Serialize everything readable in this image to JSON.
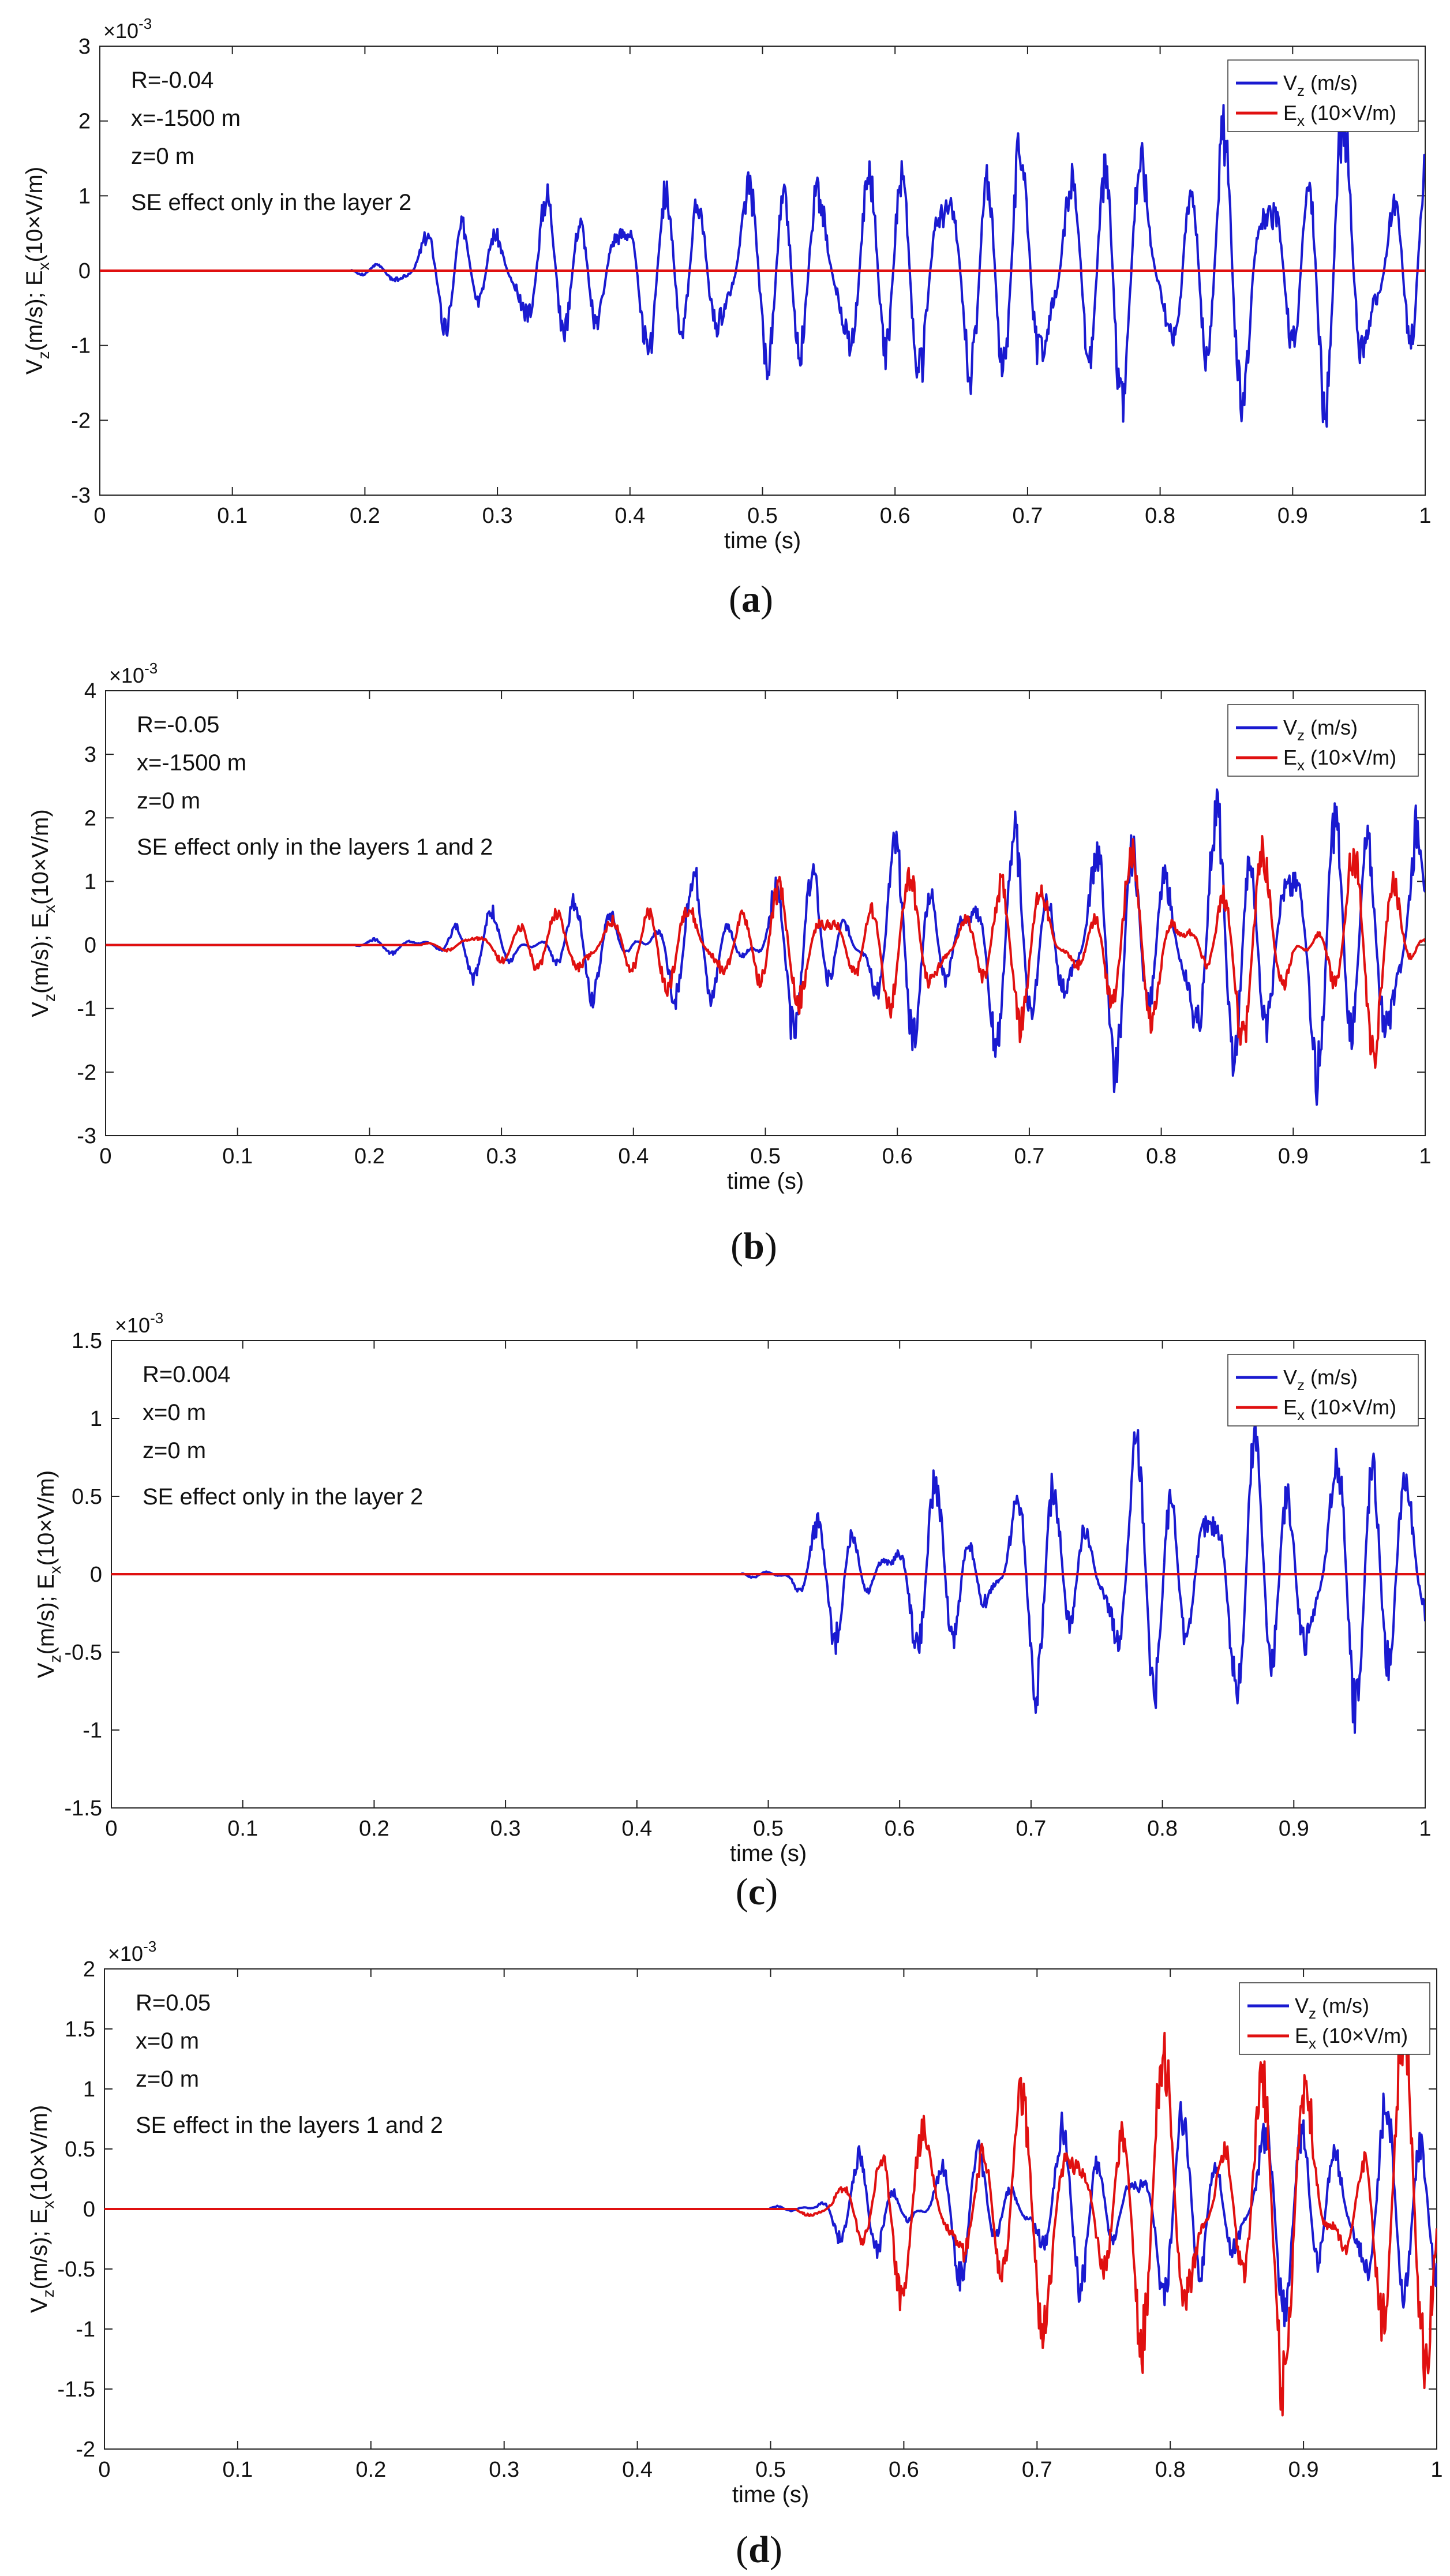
{
  "chart_data": [
    {
      "type": "line",
      "panel": "(a)",
      "caption_letter": "a",
      "scale_label": "×10",
      "scale_exp": "-3",
      "xlim": [
        0,
        1
      ],
      "ylim": [
        -3,
        3
      ],
      "xticks": [
        0,
        0.1,
        0.2,
        0.3,
        0.4,
        0.5,
        0.6,
        0.7,
        0.8,
        0.9,
        1
      ],
      "xtick_labels": [
        "0",
        "0.1",
        "0.2",
        "0.3",
        "0.4",
        "0.5",
        "0.6",
        "0.7",
        "0.8",
        "0.9",
        "1"
      ],
      "yticks": [
        3,
        2,
        1,
        0,
        -1,
        -2,
        -3
      ],
      "ytick_labels": [
        "3",
        "2",
        "1",
        "0",
        "-1",
        "-2",
        "-3"
      ],
      "xlabel": "time (s)",
      "ylabel": "V_z(m/s); E_x(10×V/m)",
      "annotations": [
        "R=-0.04",
        "x=-1500 m",
        "z=0 m",
        "SE effect only in the layer 2"
      ],
      "series": [
        {
          "name": "V_z (m/s)",
          "legend_main": "V",
          "legend_sub": "z",
          "legend_rest": " (m/s)",
          "color": "#1a1ad0",
          "onset": 0.19,
          "amps": [
            0.05,
            0.5,
            1.0,
            1.4,
            1.8,
            1.9,
            2.0
          ],
          "freq": 33,
          "seed": 3
        },
        {
          "name": "E_x (10×V/m)",
          "legend_main": "E",
          "legend_sub": "x",
          "legend_rest": " (10×V/m)",
          "color": "#e01010",
          "onset": 1.1,
          "amps": [
            0,
            0,
            0,
            0,
            0,
            0,
            0
          ],
          "freq": 33,
          "seed": 5
        }
      ]
    },
    {
      "type": "line",
      "panel": "(b)",
      "caption_letter": "b",
      "scale_label": "×10",
      "scale_exp": "-3",
      "xlim": [
        0,
        1
      ],
      "ylim": [
        -3,
        4
      ],
      "xticks": [
        0,
        0.1,
        0.2,
        0.3,
        0.4,
        0.5,
        0.6,
        0.7,
        0.8,
        0.9,
        1
      ],
      "xtick_labels": [
        "0",
        "0.1",
        "0.2",
        "0.3",
        "0.4",
        "0.5",
        "0.6",
        "0.7",
        "0.8",
        "0.9",
        "1"
      ],
      "yticks": [
        4,
        3,
        2,
        1,
        0,
        -1,
        -2,
        -3
      ],
      "ytick_labels": [
        "4",
        "3",
        "2",
        "1",
        "0",
        "-1",
        "-2",
        "-3"
      ],
      "xlabel": "time (s)",
      "ylabel": "V_z(m/s); E_x(10×V/m)",
      "annotations": [
        "R=-0.05",
        "x=-1500 m",
        "z=0 m",
        "SE effect only in the layers 1 and 2"
      ],
      "series": [
        {
          "name": "V_z (m/s)",
          "legend_main": "V",
          "legend_sub": "z",
          "legend_rest": " (m/s)",
          "color": "#1a1ad0",
          "onset": 0.19,
          "amps": [
            0.05,
            0.3,
            0.6,
            1.2,
            1.6,
            2.1,
            2.4
          ],
          "freq": 33,
          "seed": 7
        },
        {
          "name": "E_x (10×V/m)",
          "legend_main": "E",
          "legend_sub": "x",
          "legend_rest": " (10×V/m)",
          "color": "#e01010",
          "onset": 0.24,
          "amps": [
            0.02,
            0.2,
            0.5,
            0.9,
            1.1,
            1.3,
            1.5
          ],
          "freq": 30,
          "seed": 11
        }
      ]
    },
    {
      "type": "line",
      "panel": "(c)",
      "caption_letter": "c",
      "scale_label": "×10",
      "scale_exp": "-3",
      "xlim": [
        0,
        1
      ],
      "ylim": [
        -1.5,
        1.5
      ],
      "xticks": [
        0,
        0.1,
        0.2,
        0.3,
        0.4,
        0.5,
        0.6,
        0.7,
        0.8,
        0.9,
        1
      ],
      "xtick_labels": [
        "0",
        "0.1",
        "0.2",
        "0.3",
        "0.4",
        "0.5",
        "0.6",
        "0.7",
        "0.8",
        "0.9",
        "1"
      ],
      "yticks": [
        1.5,
        1,
        0.5,
        0,
        -0.5,
        -1,
        -1.5
      ],
      "ytick_labels": [
        "1.5",
        "1",
        "0.5",
        "0",
        "-0.5",
        "-1",
        "-1.5"
      ],
      "xlabel": "time (s)",
      "ylabel": "V_z(m/s); E_x(10×V/m)",
      "annotations": [
        "R=0.004",
        "x=0 m",
        "z=0 m",
        "SE effect only in the layer 2"
      ],
      "series": [
        {
          "name": "V_z (m/s)",
          "legend_main": "V",
          "legend_sub": "z",
          "legend_rest": " (m/s)",
          "color": "#1a1ad0",
          "onset": 0.48,
          "amps": [
            0.01,
            0.08,
            0.2,
            0.35,
            0.6,
            0.85,
            0.95
          ],
          "freq": 33,
          "seed": 13
        },
        {
          "name": "E_x (10×V/m)",
          "legend_main": "E",
          "legend_sub": "x",
          "legend_rest": " (10×V/m)",
          "color": "#e01010",
          "onset": 1.1,
          "amps": [
            0,
            0,
            0,
            0,
            0,
            0,
            0
          ],
          "freq": 33,
          "seed": 17
        }
      ]
    },
    {
      "type": "line",
      "panel": "(d)",
      "caption_letter": "d",
      "scale_label": "×10",
      "scale_exp": "-3",
      "xlim": [
        0,
        1
      ],
      "ylim": [
        -2,
        2
      ],
      "xticks": [
        0,
        0.1,
        0.2,
        0.3,
        0.4,
        0.5,
        0.6,
        0.7,
        0.8,
        0.9,
        1
      ],
      "xtick_labels": [
        "0",
        "0.1",
        "0.2",
        "0.3",
        "0.4",
        "0.5",
        "0.6",
        "0.7",
        "0.8",
        "0.9",
        "1"
      ],
      "yticks": [
        2,
        1.5,
        1,
        0.5,
        0,
        -0.5,
        -1,
        -1.5,
        -2
      ],
      "ytick_labels": [
        "2",
        "1.5",
        "1",
        "0.5",
        "0",
        "-0.5",
        "-1",
        "-1.5",
        "-2"
      ],
      "xlabel": "time (s)",
      "ylabel": "V_z(m/s); E_x(10×V/m)",
      "annotations": [
        "R=0.05",
        "x=0 m",
        "z=0 m",
        "SE effect in the layers 1 and 2"
      ],
      "series": [
        {
          "name": "V_z (m/s)",
          "legend_main": "V",
          "legend_sub": "z",
          "legend_rest": " (m/s)",
          "color": "#1a1ad0",
          "onset": 0.5,
          "amps": [
            0.01,
            0.05,
            0.2,
            0.35,
            0.55,
            0.8,
            0.9
          ],
          "freq": 33,
          "seed": 19
        },
        {
          "name": "E_x (10×V/m)",
          "legend_main": "E",
          "legend_sub": "x",
          "legend_rest": " (10×V/m)",
          "color": "#e01010",
          "onset": 0.52,
          "amps": [
            0.01,
            0.05,
            0.2,
            0.5,
            0.9,
            1.35,
            1.3
          ],
          "freq": 28,
          "seed": 23
        }
      ]
    }
  ]
}
